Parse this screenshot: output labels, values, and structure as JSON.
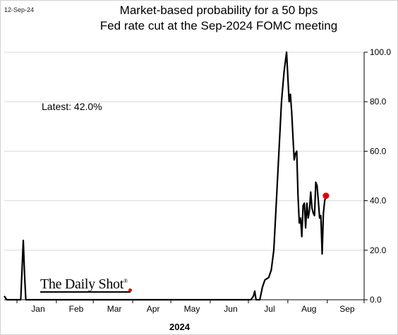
{
  "date_stamp": "12-Sep-24",
  "title_line1": "Market-based probability for a 50 bps",
  "title_line2": "Fed rate cut at the Sep-2024 FOMC meeting",
  "annotation": "Latest:  42.0%",
  "logo_text": "The Daily Shot",
  "logo_mark": "®",
  "colors": {
    "line": "#000000",
    "latest_marker": "#e00000",
    "grid": "#d9d9d9"
  },
  "chart_data": {
    "type": "line",
    "title": "Market-based probability for a 50 bps Fed rate cut at the Sep-2024 FOMC meeting",
    "xlabel": "2024",
    "ylabel": "",
    "ylim": [
      0,
      100
    ],
    "y_ticks": [
      0,
      20,
      40,
      60,
      80,
      100
    ],
    "y_tick_labels": [
      "0.0",
      "20.0",
      "40.0",
      "60.0",
      "80.0",
      "100.0"
    ],
    "y_axis_side": "right",
    "grid": "horizontal",
    "x_tick_labels": [
      "Jan",
      "Feb",
      "Mar",
      "Apr",
      "May",
      "Jun",
      "Jul",
      "Aug",
      "Sep"
    ],
    "x_range": [
      "2023-12-22",
      "2024-09-30"
    ],
    "series": [
      {
        "points": [
          [
            "2023-12-22",
            1.5
          ],
          [
            "2023-12-24",
            0
          ],
          [
            "2024-01-04",
            0
          ],
          [
            "2024-01-05",
            12
          ],
          [
            "2024-01-06",
            24
          ],
          [
            "2024-01-07",
            10
          ],
          [
            "2024-01-08",
            0
          ],
          [
            "2024-07-03",
            0
          ],
          [
            "2024-07-05",
            1.5
          ],
          [
            "2024-07-06",
            3.5
          ],
          [
            "2024-07-07",
            0
          ],
          [
            "2024-07-10",
            0
          ],
          [
            "2024-07-12",
            5
          ],
          [
            "2024-07-14",
            8
          ],
          [
            "2024-07-17",
            9
          ],
          [
            "2024-07-19",
            12
          ],
          [
            "2024-07-21",
            20
          ],
          [
            "2024-07-23",
            40
          ],
          [
            "2024-07-25",
            60
          ],
          [
            "2024-07-27",
            80
          ],
          [
            "2024-07-29",
            92
          ],
          [
            "2024-07-31",
            100
          ],
          [
            "2024-08-01",
            90
          ],
          [
            "2024-08-02",
            80
          ],
          [
            "2024-08-03",
            83
          ],
          [
            "2024-08-04",
            76
          ],
          [
            "2024-08-05",
            66
          ],
          [
            "2024-08-06",
            56.5
          ],
          [
            "2024-08-07",
            59
          ],
          [
            "2024-08-08",
            60
          ],
          [
            "2024-08-09",
            42
          ],
          [
            "2024-08-10",
            31
          ],
          [
            "2024-08-11",
            33
          ],
          [
            "2024-08-12",
            25.5
          ],
          [
            "2024-08-13",
            38
          ],
          [
            "2024-08-14",
            39
          ],
          [
            "2024-08-15",
            29
          ],
          [
            "2024-08-16",
            39
          ],
          [
            "2024-08-17",
            33
          ],
          [
            "2024-08-18",
            36
          ],
          [
            "2024-08-19",
            43.5
          ],
          [
            "2024-08-20",
            37
          ],
          [
            "2024-08-21",
            35
          ],
          [
            "2024-08-22",
            34
          ],
          [
            "2024-08-23",
            47.5
          ],
          [
            "2024-08-24",
            46
          ],
          [
            "2024-08-25",
            40
          ],
          [
            "2024-08-26",
            33
          ],
          [
            "2024-08-27",
            34
          ],
          [
            "2024-08-28",
            18.5
          ],
          [
            "2024-08-29",
            35
          ],
          [
            "2024-08-30",
            40
          ],
          [
            "2024-08-31",
            42
          ]
        ]
      }
    ],
    "latest": {
      "date": "2024-08-31",
      "value": 42.0
    }
  }
}
